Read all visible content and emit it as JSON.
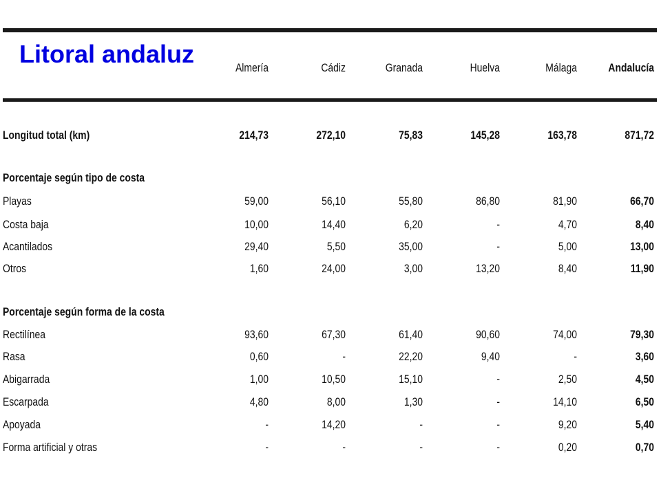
{
  "title": "Litoral andaluz",
  "columns": [
    "Almería",
    "Cádiz",
    "Granada",
    "Huelva",
    "Málaga",
    "Andalucía"
  ],
  "rows": [
    {
      "label": "Longitud total (km)",
      "bold_label": true,
      "values": [
        "214,73",
        "272,10",
        "75,83",
        "145,28",
        "163,78",
        "871,72"
      ]
    },
    {
      "label": "Porcentaje según tipo de costa",
      "section": true
    },
    {
      "label": "Playas",
      "values": [
        "59,00",
        "56,10",
        "55,80",
        "86,80",
        "81,90",
        "66,70"
      ]
    },
    {
      "label": "Costa baja",
      "values": [
        "10,00",
        "14,40",
        "6,20",
        "-",
        "4,70",
        "8,40"
      ]
    },
    {
      "label": "Acantilados",
      "values": [
        "29,40",
        "5,50",
        "35,00",
        "-",
        "5,00",
        "13,00"
      ]
    },
    {
      "label": "Otros",
      "values": [
        "1,60",
        "24,00",
        "3,00",
        "13,20",
        "8,40",
        "11,90"
      ]
    },
    {
      "label": "Porcentaje según forma de la costa",
      "section": true
    },
    {
      "label": "Rectilínea",
      "values": [
        "93,60",
        "67,30",
        "61,40",
        "90,60",
        "74,00",
        "79,30"
      ]
    },
    {
      "label": "Rasa",
      "values": [
        "0,60",
        "-",
        "22,20",
        "9,40",
        "-",
        "3,60"
      ]
    },
    {
      "label": "Abigarrada",
      "values": [
        "1,00",
        "10,50",
        "15,10",
        "-",
        "2,50",
        "4,50"
      ]
    },
    {
      "label": "Escarpada",
      "values": [
        "4,80",
        "8,00",
        "1,30",
        "-",
        "14,10",
        "6,50"
      ]
    },
    {
      "label": "Apoyada",
      "values": [
        "-",
        "14,20",
        "-",
        "-",
        "9,20",
        "5,40"
      ]
    },
    {
      "label": "Forma artificial y otras",
      "values": [
        "-",
        "-",
        "-",
        "-",
        "0,20",
        "0,70"
      ]
    }
  ]
}
